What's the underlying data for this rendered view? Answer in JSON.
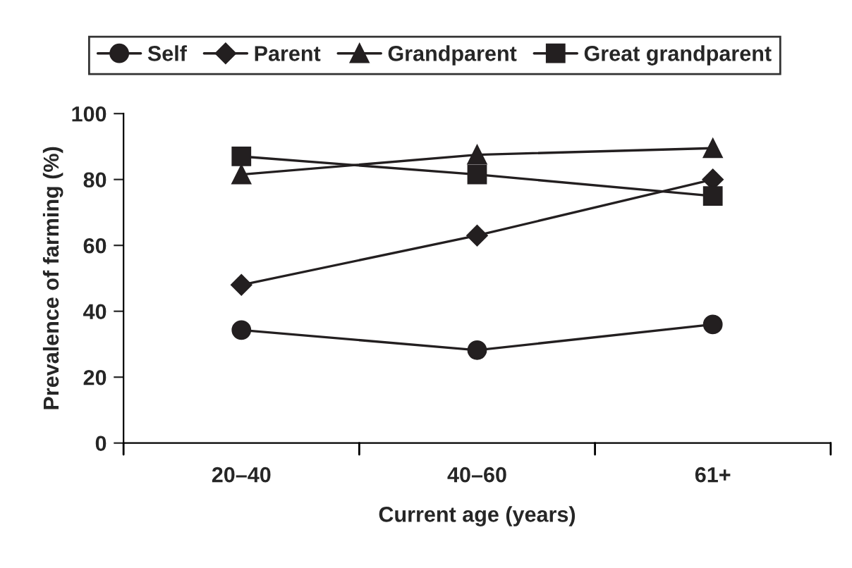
{
  "chart_data": {
    "type": "line",
    "xlabel": "Current age (years)",
    "ylabel": "Prevalence of farming (%)",
    "categories": [
      "20–40",
      "40–60",
      "61+"
    ],
    "series": [
      {
        "name": "Self",
        "color": "#231f20",
        "marker": "circle",
        "values": [
          34.3,
          28.2,
          36
        ]
      },
      {
        "name": "Parent",
        "color": "#231f20",
        "marker": "diamond",
        "values": [
          48,
          63,
          80
        ]
      },
      {
        "name": "Grandparent",
        "color": "#231f20",
        "marker": "triangle",
        "values": [
          81.5,
          87.5,
          89.5
        ]
      },
      {
        "name": "Great grandparent",
        "color": "#231f20",
        "marker": "square",
        "values": [
          87,
          81.5,
          75
        ]
      }
    ],
    "ylim": [
      0,
      100
    ],
    "yticks": [
      0,
      20,
      40,
      60,
      80,
      100
    ],
    "legend": "top",
    "grid": false,
    "line_style": "solid"
  }
}
